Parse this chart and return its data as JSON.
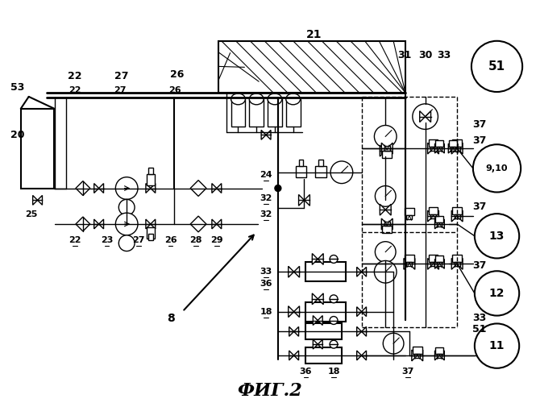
{
  "title": "ФИГ.2",
  "bg_color": "#ffffff",
  "line_color": "#000000",
  "figsize": [
    6.7,
    5.0
  ],
  "dpi": 100
}
